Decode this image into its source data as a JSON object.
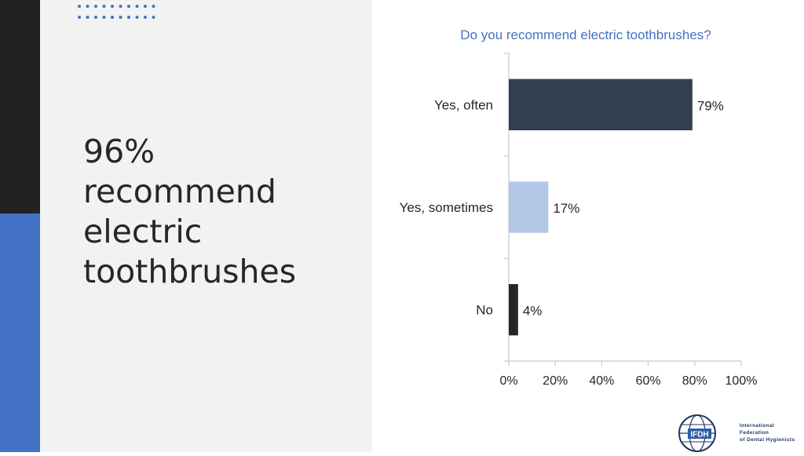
{
  "headline": {
    "line1": "96%",
    "line2": "recommend",
    "line3": "electric",
    "line4": "toothbrushes"
  },
  "colors": {
    "accent_blue": "#4472c4",
    "dark_strip": "#222222",
    "panel_bg": "#f2f2f2",
    "title_color": "#4472c4"
  },
  "chart_data": {
    "type": "bar",
    "orientation": "horizontal",
    "title": "Do you recommend electric toothbrushes?",
    "categories": [
      "Yes, often",
      "Yes, sometimes",
      "No"
    ],
    "values": [
      79,
      17,
      4
    ],
    "value_labels": [
      "79%",
      "17%",
      "4%"
    ],
    "bar_colors": [
      "#323f51",
      "#b4c7e7",
      "#262626"
    ],
    "xlim": [
      0,
      100
    ],
    "x_ticks": [
      0,
      20,
      40,
      60,
      80,
      100
    ],
    "x_tick_labels": [
      "0%",
      "20%",
      "40%",
      "60%",
      "80%",
      "100%"
    ],
    "grid": false,
    "legend": "none"
  },
  "logo": {
    "abbr": "IFDH",
    "line1": "International Federation",
    "line2": "of Dental Hygienists"
  }
}
